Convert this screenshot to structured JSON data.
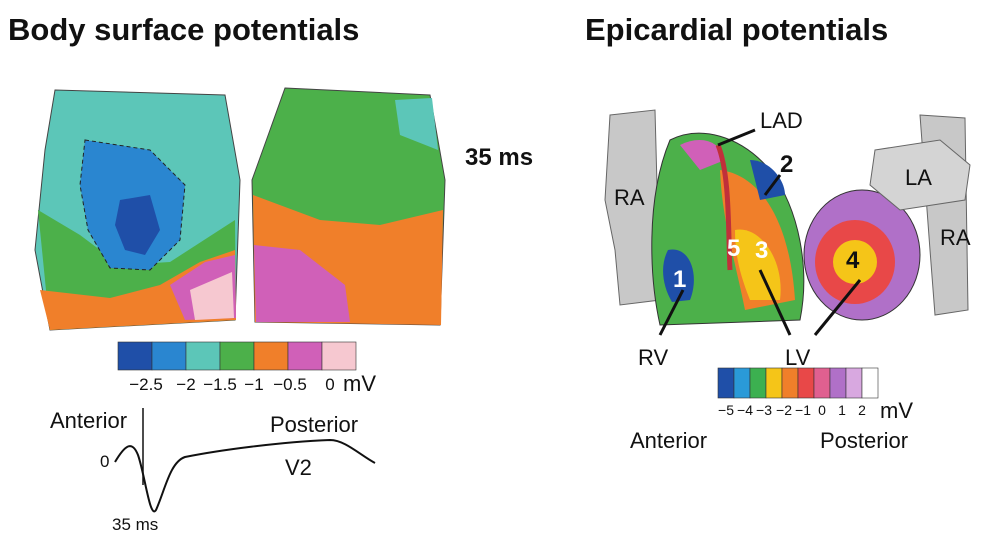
{
  "left_panel": {
    "title": "Body surface potentials",
    "time_label": "35 ms",
    "colorbar": {
      "ticks": [
        "−2.5",
        "−2",
        "−1.5",
        "−1",
        "−0.5",
        "0"
      ],
      "unit": "mV"
    },
    "ecg": {
      "anterior": "Anterior",
      "posterior": "Posterior",
      "zero": "0",
      "lead": "V2",
      "time": "35 ms"
    }
  },
  "right_panel": {
    "title": "Epicardial potentials",
    "labels": {
      "lad": "LAD",
      "ra_left": "RA",
      "la": "LA",
      "ra_right": "RA",
      "rv": "RV",
      "lv": "LV"
    },
    "sites": [
      "1",
      "2",
      "3",
      "4",
      "5"
    ],
    "colorbar": {
      "ticks": [
        "−5",
        "−4",
        "−3",
        "−2",
        "−1",
        "0",
        "1",
        "2"
      ],
      "unit": "mV"
    },
    "views": {
      "anterior": "Anterior",
      "posterior": "Posterior"
    }
  }
}
